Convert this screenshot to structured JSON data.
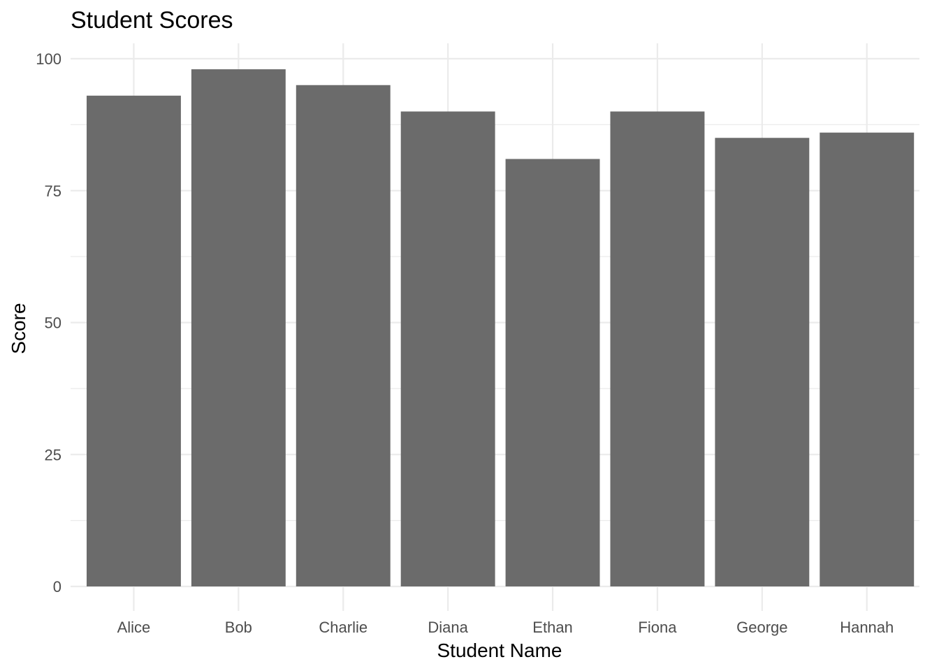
{
  "chart_data": {
    "type": "bar",
    "title": "Student Scores",
    "xlabel": "Student Name",
    "ylabel": "Score",
    "categories": [
      "Alice",
      "Bob",
      "Charlie",
      "Diana",
      "Ethan",
      "Fiona",
      "George",
      "Hannah"
    ],
    "values": [
      93,
      98,
      95,
      90,
      81,
      90,
      85,
      86
    ],
    "ylim": [
      0,
      100
    ],
    "yticks": [
      0,
      25,
      50,
      75,
      100
    ],
    "ytick_labels": [
      "0",
      "25",
      "50",
      "75",
      "100"
    ],
    "grid": true,
    "legend": "none",
    "bar_color": "#6b6b6b",
    "background": "#ffffff"
  }
}
